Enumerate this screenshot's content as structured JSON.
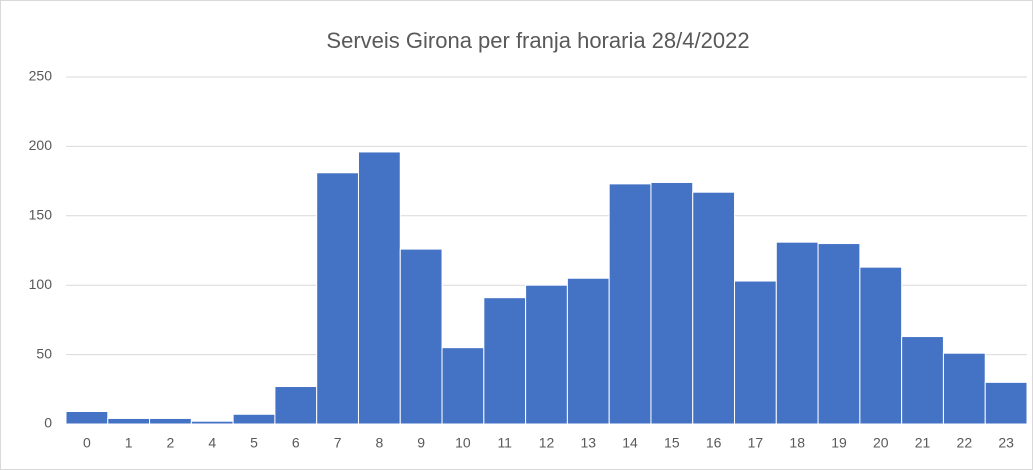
{
  "chart_data": {
    "type": "bar",
    "title": "Serveis Girona per franja horaria 28/4/2022",
    "categories": [
      "0",
      "1",
      "2",
      "4",
      "5",
      "6",
      "7",
      "8",
      "9",
      "10",
      "11",
      "12",
      "13",
      "14",
      "15",
      "16",
      "17",
      "18",
      "19",
      "20",
      "21",
      "22",
      "23"
    ],
    "values": [
      9,
      4,
      4,
      2,
      7,
      27,
      181,
      196,
      126,
      55,
      91,
      100,
      105,
      173,
      174,
      167,
      103,
      131,
      130,
      113,
      63,
      51,
      30
    ],
    "color": "#4472c4",
    "ylim": [
      0,
      250
    ],
    "yticks": [
      0,
      50,
      100,
      150,
      200,
      250
    ],
    "grid": true
  }
}
